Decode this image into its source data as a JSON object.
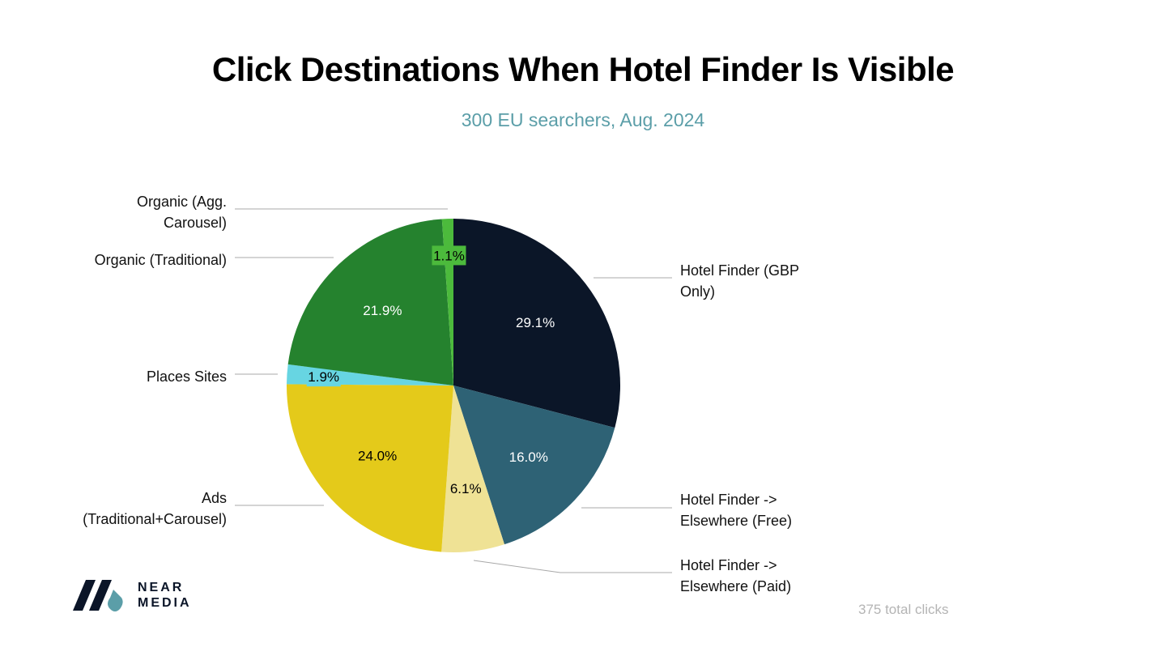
{
  "title": "Click Destinations When Hotel Finder Is Visible",
  "subtitle": "300 EU searchers, Aug. 2024",
  "footnote": "375 total clicks",
  "logo": {
    "line1": "NEAR",
    "line2": "MEDIA"
  },
  "chart_data": {
    "type": "pie",
    "title": "Click Destinations When Hotel Finder Is Visible",
    "subtitle": "300 EU searchers, Aug. 2024",
    "slices": [
      {
        "label": "Hotel Finder (GBP Only)",
        "label_lines": [
          "Hotel Finder (GBP",
          "Only)"
        ],
        "value": 29.1,
        "display": "29.1%",
        "color": "#0b1628"
      },
      {
        "label": "Hotel Finder -> Elsewhere (Free)",
        "label_lines": [
          "Hotel Finder ->",
          "Elsewhere (Free)"
        ],
        "value": 16.0,
        "display": "16.0%",
        "color": "#2e6275"
      },
      {
        "label": "Hotel Finder -> Elsewhere (Paid)",
        "label_lines": [
          "Hotel Finder ->",
          "Elsewhere (Paid)"
        ],
        "value": 6.1,
        "display": "6.1%",
        "color": "#efe295"
      },
      {
        "label": "Ads (Traditional+Carousel)",
        "label_lines": [
          "Ads",
          "(Traditional+Carousel)"
        ],
        "value": 24.0,
        "display": "24.0%",
        "color": "#e4ca1a"
      },
      {
        "label": "Places Sites",
        "label_lines": [
          "Places Sites"
        ],
        "value": 1.9,
        "display": "1.9%",
        "color": "#67d5e2"
      },
      {
        "label": "Organic (Traditional)",
        "label_lines": [
          "Organic (Traditional)"
        ],
        "value": 21.9,
        "display": "21.9%",
        "color": "#25822e"
      },
      {
        "label": "Organic (Agg. Carousel)",
        "label_lines": [
          "Organic (Agg.",
          "Carousel)"
        ],
        "value": 1.1,
        "display": "1.1%",
        "color": "#4cba3c"
      }
    ]
  }
}
